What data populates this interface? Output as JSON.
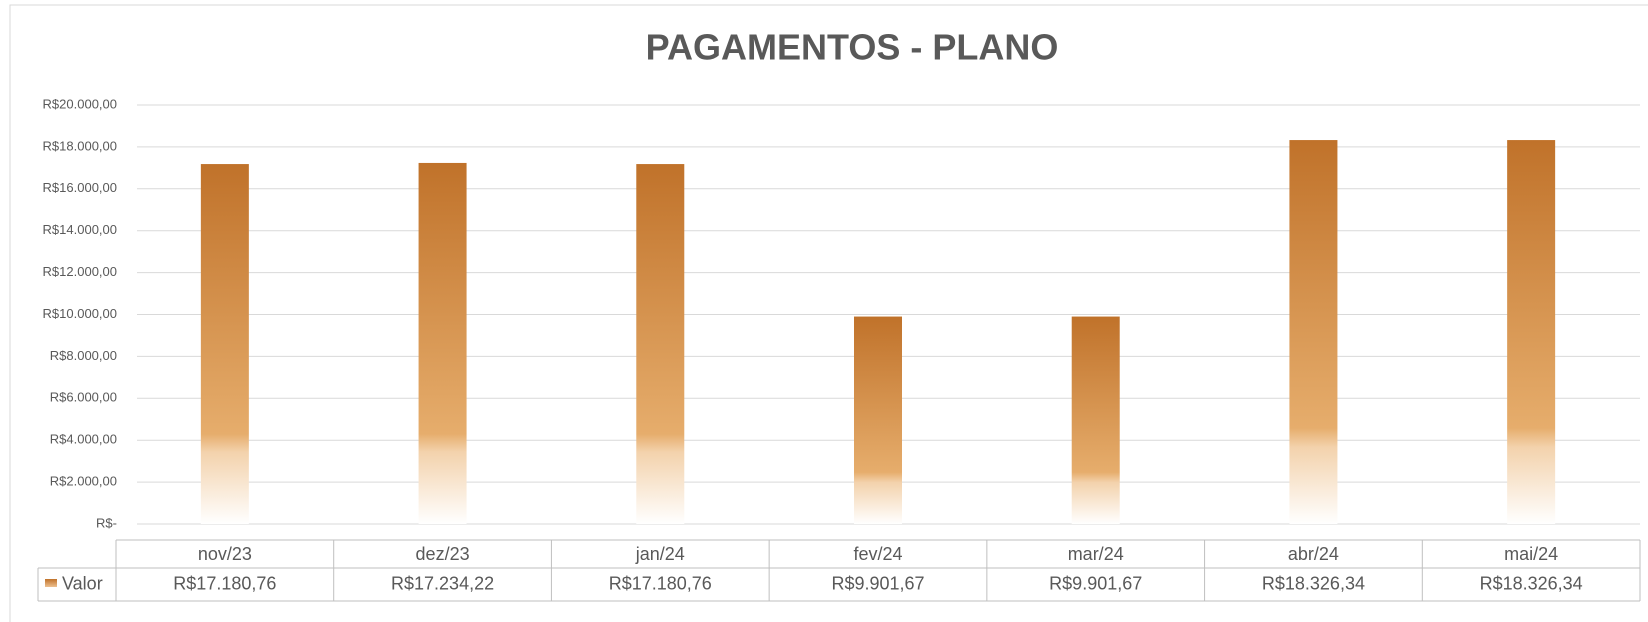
{
  "chart_data": {
    "type": "bar",
    "title": "PAGAMENTOS - PLANO",
    "categories": [
      "nov/23",
      "dez/23",
      "jan/24",
      "fev/24",
      "mar/24",
      "abr/24",
      "mai/24"
    ],
    "series": [
      {
        "name": "Valor",
        "color": "#c0722a",
        "values": [
          17180.76,
          17234.22,
          17180.76,
          9901.67,
          9901.67,
          18326.34,
          18326.34
        ],
        "value_labels": [
          "R$17.180,76",
          "R$17.234,22",
          "R$17.180,76",
          "R$9.901,67",
          "R$9.901,67",
          "R$18.326,34",
          "R$18.326,34"
        ]
      }
    ],
    "ylim": [
      0,
      20000
    ],
    "yticks": [
      {
        "value": 0,
        "label": "R$-"
      },
      {
        "value": 2000,
        "label": "R$2.000,00"
      },
      {
        "value": 4000,
        "label": "R$4.000,00"
      },
      {
        "value": 6000,
        "label": "R$6.000,00"
      },
      {
        "value": 8000,
        "label": "R$8.000,00"
      },
      {
        "value": 10000,
        "label": "R$10.000,00"
      },
      {
        "value": 12000,
        "label": "R$12.000,00"
      },
      {
        "value": 14000,
        "label": "R$14.000,00"
      },
      {
        "value": 16000,
        "label": "R$16.000,00"
      },
      {
        "value": 18000,
        "label": "R$18.000,00"
      },
      {
        "value": 20000,
        "label": "R$20.000,00"
      }
    ],
    "grid": true
  }
}
